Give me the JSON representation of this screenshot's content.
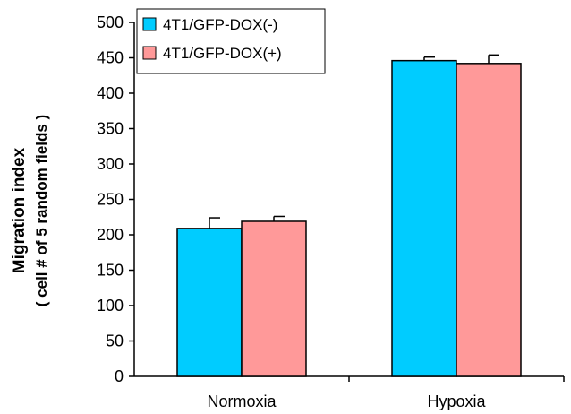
{
  "chart_data": {
    "type": "bar",
    "categories": [
      "Normoxia",
      "Hypoxia"
    ],
    "series": [
      {
        "name": "4T1/GFP-DOX(-)",
        "color": "#00CCFF",
        "values": [
          209,
          446
        ],
        "error": [
          15,
          5
        ]
      },
      {
        "name": "4T1/GFP-DOX(+)",
        "color": "#FF9999",
        "values": [
          219,
          442
        ],
        "error": [
          7,
          12
        ]
      }
    ],
    "ylabel": "Migration index",
    "ylabel_sub": "( cell # of 5 random fields )",
    "ylim": [
      0,
      500
    ],
    "yticks": [
      "0",
      "50",
      "100",
      "150",
      "200",
      "250",
      "300",
      "350",
      "400",
      "450",
      "500"
    ],
    "grid": false,
    "legend": "top-left"
  }
}
